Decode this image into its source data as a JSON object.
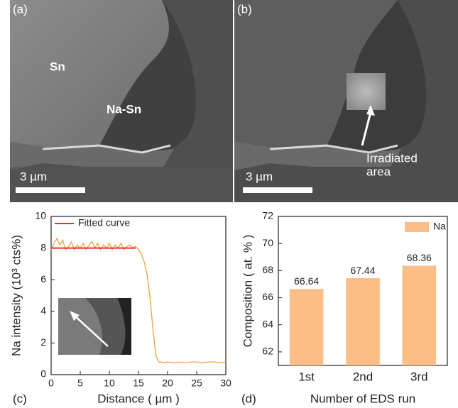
{
  "panels": [
    {
      "label": "(a)",
      "labels": [
        "Sn",
        "Na-Sn"
      ],
      "scale_bar": "3 µm"
    },
    {
      "label": "(b)",
      "scale_bar": "3 µm",
      "annotation": [
        "Irradiated",
        "area"
      ]
    }
  ],
  "chart_data": [
    {
      "type": "line",
      "panel_label": "(c)",
      "x_label": "Distance ( µm )",
      "y_label": "Na intensity (10³ cts%)",
      "xlim": [
        0,
        30
      ],
      "xticks": [
        0,
        5,
        10,
        15,
        20,
        25,
        30
      ],
      "ylim": [
        0,
        10
      ],
      "yticks": [
        0,
        2,
        4,
        6,
        8,
        10
      ],
      "series": [
        {
          "color": "#f0a040",
          "x": [
            0,
            0.5,
            1,
            1.5,
            2,
            2.5,
            3,
            3.5,
            4,
            4.5,
            5,
            5.5,
            6,
            6.5,
            7,
            7.5,
            8,
            8.5,
            9,
            9.5,
            10,
            10.5,
            11,
            11.5,
            12,
            12.5,
            13,
            13.5,
            14,
            14.5,
            15,
            15.5,
            16,
            16.5,
            17,
            17.5,
            18,
            18.5,
            19,
            19.5,
            20,
            21,
            22,
            23,
            24,
            25,
            26,
            27,
            28,
            29,
            30
          ],
          "values": [
            7.9,
            8.3,
            8.6,
            8.2,
            8.5,
            7.9,
            8.1,
            8.4,
            7.9,
            8.2,
            8.0,
            8.3,
            7.9,
            8.2,
            8.4,
            8.0,
            8.3,
            7.9,
            8.2,
            8.0,
            8.3,
            7.9,
            8.2,
            8.0,
            8.3,
            7.9,
            8.1,
            8.2,
            8.0,
            8.1,
            7.9,
            7.6,
            7.1,
            6.3,
            4.8,
            2.8,
            1.2,
            0.8,
            0.8,
            0.75,
            0.8,
            0.75,
            0.8,
            0.75,
            0.8,
            0.8,
            0.75,
            0.8,
            0.8,
            0.75,
            0.8
          ]
        },
        {
          "name": "Fitted curve",
          "color": "#e8302a",
          "x": [
            0,
            14.5
          ],
          "values": [
            8,
            8
          ]
        }
      ]
    },
    {
      "type": "bar",
      "panel_label": "(d)",
      "x_label": "Number of EDS run",
      "y_label": "Composition ( at. % )",
      "categories": [
        "1st",
        "2nd",
        "3rd"
      ],
      "ylim": [
        61,
        72
      ],
      "yticks": [
        62,
        64,
        66,
        68,
        70,
        72
      ],
      "series": [
        {
          "name": "Na",
          "color": "#fbbf86",
          "values": [
            66.64,
            67.44,
            68.36
          ]
        }
      ]
    }
  ]
}
